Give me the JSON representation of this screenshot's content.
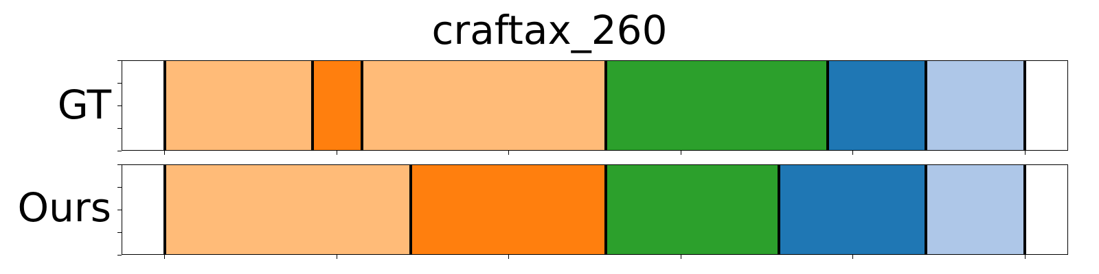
{
  "chart_data": {
    "type": "table",
    "title": "craftax_260",
    "rows": [
      {
        "label": "GT",
        "segments": [
          {
            "start": 5,
            "end": 22.2,
            "color": "#ffbb78"
          },
          {
            "start": 22.2,
            "end": 27.9,
            "color": "#ff7f0e"
          },
          {
            "start": 27.9,
            "end": 56.3,
            "color": "#ffbb78"
          },
          {
            "start": 56.3,
            "end": 82.1,
            "color": "#2ca02c"
          },
          {
            "start": 82.1,
            "end": 93.5,
            "color": "#1f77b4"
          },
          {
            "start": 93.5,
            "end": 105,
            "color": "#aec7e8"
          }
        ],
        "boundaries": [
          5,
          22.2,
          27.9,
          56.3,
          82.1,
          93.5,
          105
        ]
      },
      {
        "label": "Ours",
        "segments": [
          {
            "start": 5,
            "end": 33.6,
            "color": "#ffbb78"
          },
          {
            "start": 33.6,
            "end": 56.3,
            "color": "#ff7f0e"
          },
          {
            "start": 56.3,
            "end": 76.4,
            "color": "#2ca02c"
          },
          {
            "start": 76.4,
            "end": 93.5,
            "color": "#1f77b4"
          },
          {
            "start": 93.5,
            "end": 105,
            "color": "#aec7e8"
          }
        ],
        "boundaries": [
          5,
          33.6,
          56.3,
          76.4,
          93.5,
          105
        ]
      }
    ],
    "xlim": [
      0,
      110
    ],
    "xticks": [
      5,
      25,
      45,
      65,
      85,
      105
    ],
    "colors": {
      "light_orange": "#ffbb78",
      "orange": "#ff7f0e",
      "green": "#2ca02c",
      "blue": "#1f77b4",
      "light_blue": "#aec7e8"
    }
  }
}
